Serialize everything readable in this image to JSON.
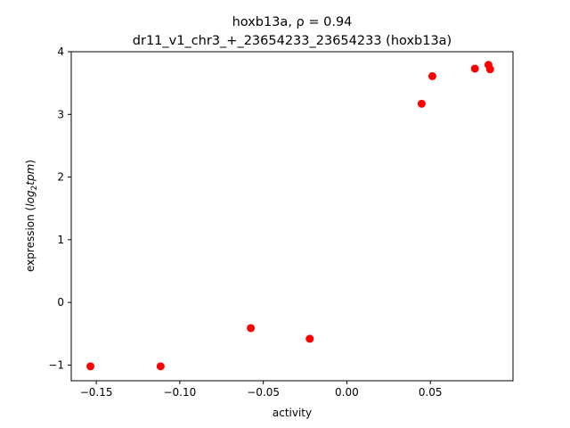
{
  "chart_data": {
    "type": "scatter",
    "title_line1_prefix": "hoxb13a, ",
    "title_line1_rho": "ρ = 0.94",
    "title_line2": "dr11_v1_chr3_+_23654233_23654233 (hoxb13a)",
    "xlabel": "activity",
    "ylabel_prefix": "expression (",
    "ylabel_math": "log",
    "ylabel_sub": "2",
    "ylabel_math2": "tpm",
    "ylabel_suffix": ")",
    "xlim": [
      -0.165,
      0.0995
    ],
    "ylim": [
      -1.25,
      4.0
    ],
    "xticks": [
      -0.15,
      -0.1,
      -0.05,
      0.0,
      0.05
    ],
    "xtick_labels": [
      "−0.15",
      "−0.10",
      "−0.05",
      "0.00",
      "0.05"
    ],
    "yticks": [
      -1,
      0,
      1,
      2,
      3,
      4
    ],
    "ytick_labels": [
      "−1",
      "0",
      "1",
      "2",
      "3",
      "4"
    ],
    "marker_color": "#ff0000",
    "grid": false,
    "points": [
      {
        "x": -0.1535,
        "y": -1.02
      },
      {
        "x": -0.1115,
        "y": -1.02
      },
      {
        "x": -0.0575,
        "y": -0.41
      },
      {
        "x": -0.0222,
        "y": -0.58
      },
      {
        "x": 0.0448,
        "y": 3.17
      },
      {
        "x": 0.0512,
        "y": 3.61
      },
      {
        "x": 0.0767,
        "y": 3.73
      },
      {
        "x": 0.0848,
        "y": 3.79
      },
      {
        "x": 0.0858,
        "y": 3.72
      }
    ]
  }
}
